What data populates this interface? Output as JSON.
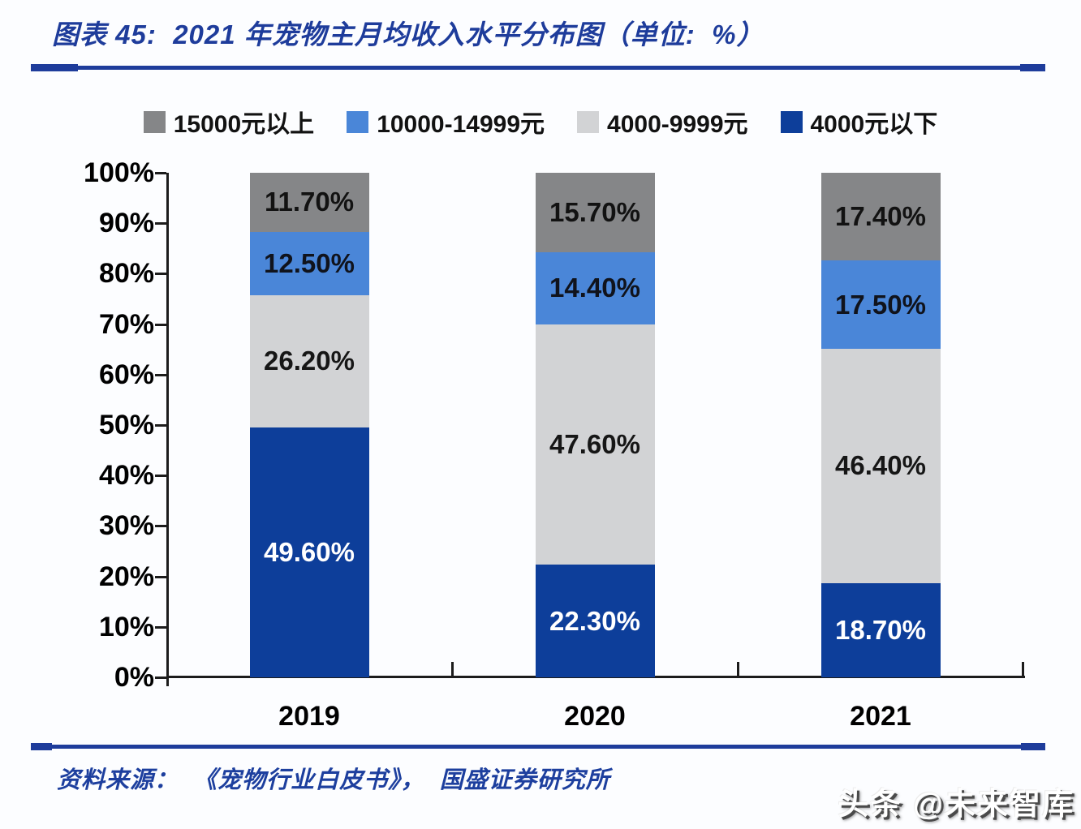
{
  "page": {
    "background": "#fcfdff",
    "accent_color": "#1e3c9b"
  },
  "header": {
    "title": "图表 45:  2021 年宠物主月均收入水平分布图（单位:  %）"
  },
  "chart_data": {
    "type": "bar",
    "stacked": true,
    "title": "2021 年宠物主月均收入水平分布图",
    "unit": "%",
    "categories": [
      "2019",
      "2020",
      "2021"
    ],
    "series": [
      {
        "name": "4000元以下",
        "color": "#0d3e9a",
        "label_color": "#ffffff",
        "values": [
          49.6,
          22.3,
          18.7
        ]
      },
      {
        "name": "4000-9999元",
        "color": "#d2d3d5",
        "label_color": "#161616",
        "values": [
          26.2,
          47.6,
          46.4
        ]
      },
      {
        "name": "10000-14999元",
        "color": "#4a86d8",
        "label_color": "#10131c",
        "values": [
          12.5,
          14.4,
          17.5
        ]
      },
      {
        "name": "15000元以上",
        "color": "#858688",
        "label_color": "#121212",
        "values": [
          11.7,
          15.7,
          17.4
        ]
      }
    ],
    "legend": {
      "position": "top",
      "order": [
        "15000元以上",
        "10000-14999元",
        "4000-9999元",
        "4000元以下"
      ]
    },
    "y_axis": {
      "min": 0,
      "max": 100,
      "step": 10,
      "suffix": "%"
    },
    "value_label_format": "0.00%",
    "grid": false,
    "axis_color": "#1c1c1c"
  },
  "footer": {
    "source": "资料来源：  《宠物行业白皮书》，  国盛证券研究所"
  },
  "watermark": {
    "text": "头条 @未来智库"
  }
}
